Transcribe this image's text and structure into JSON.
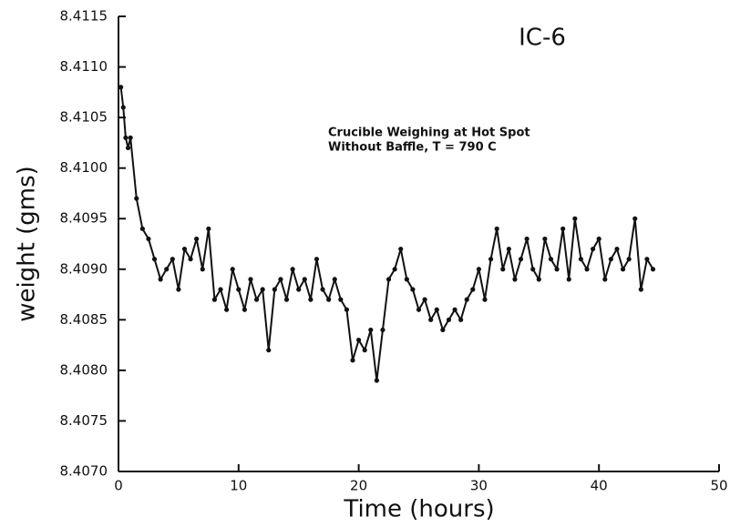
{
  "chart_data": {
    "type": "line",
    "title": "IC-6",
    "annotations": [
      "Crucible Weighing at Hot Spot",
      "Without Baffle, T = 790 C"
    ],
    "xlabel": "Time (hours)",
    "ylabel": "weight (gms)",
    "color": "#111111",
    "x": [
      0.2,
      0.4,
      0.6,
      0.8,
      1.0,
      1.5,
      2.0,
      2.5,
      3.0,
      3.5,
      4.0,
      4.5,
      5.0,
      5.5,
      6.0,
      6.5,
      7.0,
      7.5,
      8.0,
      8.5,
      9.0,
      9.5,
      10.0,
      10.5,
      11.0,
      11.5,
      12.0,
      12.5,
      13.0,
      13.5,
      14.0,
      14.5,
      15.0,
      15.5,
      16.0,
      16.5,
      17.0,
      17.5,
      18.0,
      18.5,
      19.0,
      19.5,
      20.0,
      20.5,
      21.0,
      21.5,
      22.0,
      22.5,
      23.0,
      23.5,
      24.0,
      24.5,
      25.0,
      25.5,
      26.0,
      26.5,
      27.0,
      27.5,
      28.0,
      28.5,
      29.0,
      29.5,
      30.0,
      30.5,
      31.0,
      31.5,
      32.0,
      32.5,
      33.0,
      33.5,
      34.0,
      34.5,
      35.0,
      35.5,
      36.0,
      36.5,
      37.0,
      37.5,
      38.0,
      38.5,
      39.0,
      39.5,
      40.0,
      40.5,
      41.0,
      41.5,
      42.0,
      42.5,
      43.0,
      43.5,
      44.0,
      44.5
    ],
    "values": [
      8.4108,
      8.4106,
      8.4103,
      8.4102,
      8.4103,
      8.4097,
      8.4094,
      8.4093,
      8.4091,
      8.4089,
      8.409,
      8.4091,
      8.4088,
      8.4092,
      8.4091,
      8.4093,
      8.409,
      8.4094,
      8.4087,
      8.4088,
      8.4086,
      8.409,
      8.4088,
      8.4086,
      8.4089,
      8.4087,
      8.4088,
      8.4082,
      8.4088,
      8.4089,
      8.4087,
      8.409,
      8.4088,
      8.4089,
      8.4087,
      8.4091,
      8.4088,
      8.4087,
      8.4089,
      8.4087,
      8.4086,
      8.4081,
      8.4083,
      8.4082,
      8.4084,
      8.4079,
      8.4084,
      8.4089,
      8.409,
      8.4092,
      8.4089,
      8.4088,
      8.4086,
      8.4087,
      8.4085,
      8.4086,
      8.4084,
      8.4085,
      8.4086,
      8.4085,
      8.4087,
      8.4088,
      8.409,
      8.4087,
      8.4091,
      8.4094,
      8.409,
      8.4092,
      8.4089,
      8.4091,
      8.4093,
      8.409,
      8.4089,
      8.4093,
      8.4091,
      8.409,
      8.4094,
      8.4089,
      8.4095,
      8.4091,
      8.409,
      8.4092,
      8.4093,
      8.4089,
      8.4091,
      8.4092,
      8.409,
      8.4091,
      8.4095,
      8.4088,
      8.4091,
      8.409
    ],
    "xlim": [
      0,
      50
    ],
    "xticks": [
      0,
      10,
      20,
      30,
      40,
      50
    ],
    "ylim": [
      8.407,
      8.4115
    ],
    "yticks": [
      {
        "value": 8.407,
        "label": "8.4070"
      },
      8.4075,
      {
        "value": 8.408,
        "label": "8.4080"
      },
      8.4085,
      {
        "value": 8.409,
        "label": "8.4090"
      },
      8.4095,
      {
        "value": 8.41,
        "label": "8.4100"
      },
      8.4105,
      {
        "value": 8.411,
        "label": "8.4110"
      },
      8.4115
    ],
    "grid": false
  }
}
